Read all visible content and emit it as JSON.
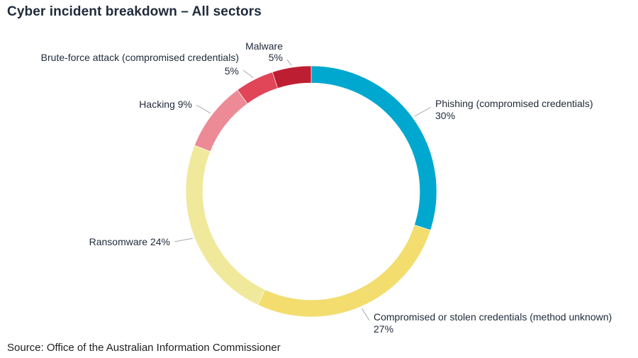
{
  "title": "Cyber incident breakdown – All sectors",
  "source": "Source: Office of the Australian Information Commissioner",
  "chart_data": {
    "type": "pie",
    "style": "donut",
    "title": "Cyber incident breakdown – All sectors",
    "unit": "%",
    "slices": [
      {
        "name": "Phishing (compromised credentials)",
        "value": 30,
        "label_lines": [
          "Phishing (compromised credentials)",
          "30%"
        ],
        "color": "#00a8cf"
      },
      {
        "name": "Compromised or stolen credentials (method unknown)",
        "value": 27,
        "label_lines": [
          "Compromised or stolen credentials (method unknown)",
          "27%"
        ],
        "color": "#f2dd6e"
      },
      {
        "name": "Ransomware",
        "value": 24,
        "label_lines": [
          "Ransomware 24%"
        ],
        "color": "#f0e99c"
      },
      {
        "name": "Hacking",
        "value": 9,
        "label_lines": [
          "Hacking 9%"
        ],
        "color": "#ec8a95"
      },
      {
        "name": "Brute-force attack (compromised credentials)",
        "value": 5,
        "label_lines": [
          "Brute-force attack (compromised credentials)",
          "5%"
        ],
        "color": "#e04558"
      },
      {
        "name": "Malware",
        "value": 5,
        "label_lines": [
          "Malware",
          "5%"
        ],
        "color": "#be1e32"
      }
    ],
    "start": "12 o'clock",
    "direction": "clockwise",
    "leader_color": "#a8a8a8"
  }
}
